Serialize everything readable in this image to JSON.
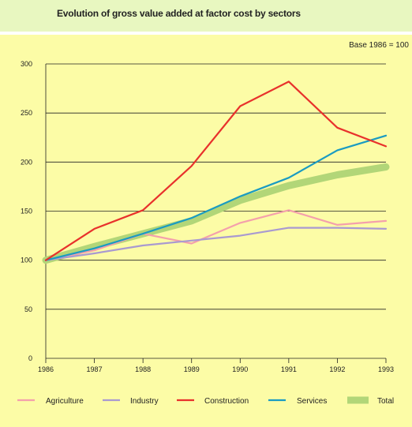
{
  "chart_data": {
    "type": "line",
    "title": "Evolution of gross value added at factor cost by sectors",
    "note": "Base 1986 = 100",
    "x": [
      "1986",
      "1987",
      "1988",
      "1989",
      "1990",
      "1991",
      "1992",
      "1993"
    ],
    "ylim": [
      0,
      300
    ],
    "yticks": [
      "0",
      "50",
      "100",
      "150",
      "200",
      "250",
      "300"
    ],
    "grid": "horizontal",
    "legend": "bottom",
    "series": [
      {
        "name": "Agriculture",
        "color": "#f4a0ac",
        "values": [
          100,
          110,
          127,
          117,
          138,
          151,
          136,
          140
        ]
      },
      {
        "name": "Industry",
        "color": "#a99ad0",
        "values": [
          100,
          107,
          115,
          120,
          125,
          133,
          133,
          132
        ]
      },
      {
        "name": "Construction",
        "color": "#e8312c",
        "values": [
          100,
          132,
          151,
          196,
          257,
          282,
          235,
          216
        ]
      },
      {
        "name": "Services",
        "color": "#1a9bc2",
        "values": [
          100,
          112,
          127,
          143,
          165,
          184,
          212,
          227
        ]
      },
      {
        "name": "Total",
        "color": "#b2d678",
        "values": [
          100,
          114,
          127,
          140,
          161,
          176,
          187,
          195
        ]
      }
    ]
  }
}
